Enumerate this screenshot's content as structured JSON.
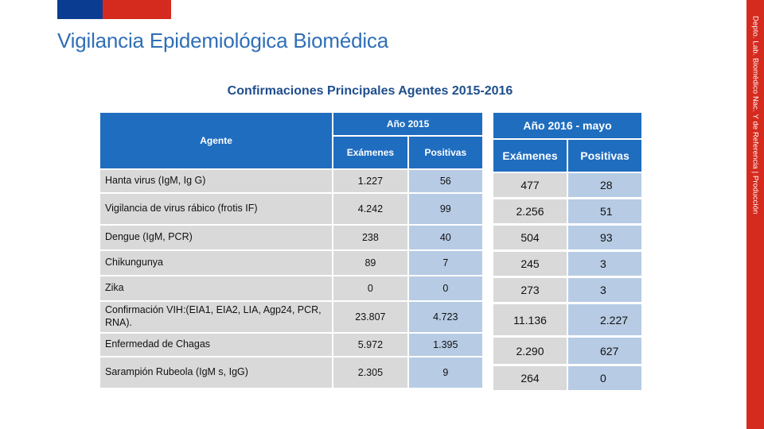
{
  "header": {
    "title": "Vigilancia Epidemiológica Biomédica",
    "side_label": "Depto. Lab. Biomédico Nac. Y de Referencia | Producción"
  },
  "colors": {
    "flag_blue": "#0a3d91",
    "flag_red": "#d52b1e",
    "header_blue": "#1f6dbf",
    "cell_gray": "#d9d9d9",
    "cell_blue": "#b7cbe4"
  },
  "subtitle": "Confirmaciones Principales Agentes 2015-2016",
  "table2015": {
    "agent_header": "Agente",
    "year_header": "Año 2015",
    "col_exams": "Exámenes",
    "col_positive": "Positivas",
    "rows": [
      {
        "agent": "Hanta virus (IgM, Ig G)",
        "exams": "1.227",
        "positive": "56"
      },
      {
        "agent": "Vigilancia de virus rábico  (frotis IF)",
        "exams": "4.242",
        "positive": "99"
      },
      {
        "agent": "Dengue (IgM, PCR)",
        "exams": "238",
        "positive": "40"
      },
      {
        "agent": "Chikungunya",
        "exams": "89",
        "positive": "7"
      },
      {
        "agent": "Zika",
        "exams": "0",
        "positive": "0"
      },
      {
        "agent": "Confirmación VIH:(EIA1, EIA2, LIA, Agp24, PCR, RNA).",
        "exams": "23.807",
        "positive": "4.723"
      },
      {
        "agent": "Enfermedad de Chagas",
        "exams": "5.972",
        "positive": "1.395"
      },
      {
        "agent": "Sarampión Rubeola (IgM s, IgG)",
        "exams": "2.305",
        "positive": "9"
      }
    ]
  },
  "table2016": {
    "year_header": "Año 2016 - mayo",
    "col_exams": "Exámenes",
    "col_positive": "Positivas",
    "rows": [
      {
        "exams": "477",
        "positive": "28"
      },
      {
        "exams": "2.256",
        "positive": "51"
      },
      {
        "exams": "504",
        "positive": "93"
      },
      {
        "exams": "245",
        "positive": "3"
      },
      {
        "exams": "273",
        "positive": "3"
      },
      {
        "exams": "11.136",
        "positive": "2.227"
      },
      {
        "exams": "2.290",
        "positive": "627"
      },
      {
        "exams": "264",
        "positive": "0"
      }
    ]
  }
}
